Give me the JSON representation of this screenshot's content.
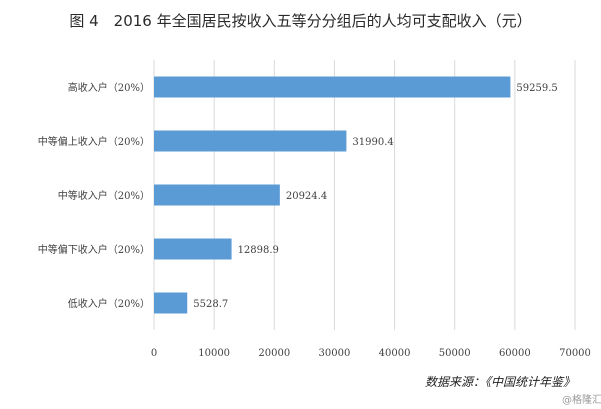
{
  "chart_data": {
    "type": "bar",
    "orientation": "horizontal",
    "title": "图 4　2016 年全国居民按收入五等分分组后的人均可支配收入（元）",
    "categories": [
      "高收入户（20%）",
      "中等偏上收入户（20%）",
      "中等收入户（20%）",
      "中等偏下收入户（20%）",
      "低收入户（20%）"
    ],
    "values": [
      59259.5,
      31990.4,
      20924.4,
      12898.9,
      5528.7
    ],
    "value_labels": [
      "59259.5",
      "31990.4",
      "20924.4",
      "12898.9",
      "5528.7"
    ],
    "xlabel": "",
    "ylabel": "",
    "xlim": [
      0,
      70000
    ],
    "xticks": [
      0,
      10000,
      20000,
      30000,
      40000,
      50000,
      60000,
      70000
    ],
    "xtick_labels": [
      "0",
      "10000",
      "20000",
      "30000",
      "40000",
      "50000",
      "60000",
      "70000"
    ],
    "grid": "vertical",
    "legend": "none",
    "bar_color": "#5b9bd5",
    "source": "数据来源：《中国统计年鉴》",
    "watermark": "@格隆汇"
  }
}
